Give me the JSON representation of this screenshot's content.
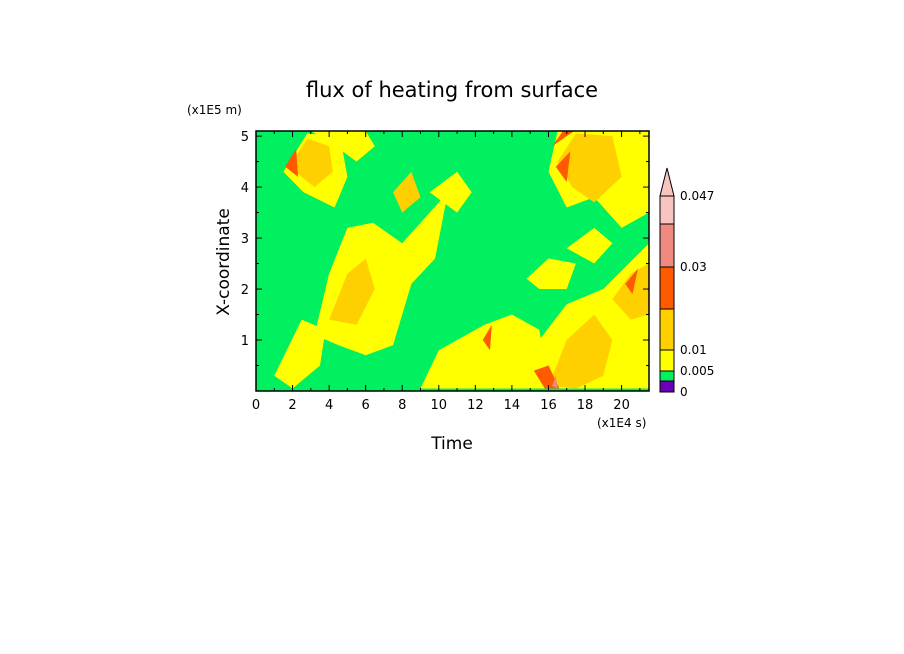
{
  "chart_data": {
    "type": "heatmap",
    "title": "flux of heating from surface",
    "xlabel": "Time",
    "ylabel": "X-coordinate",
    "x_unit": "(x1E4 s)",
    "y_unit": "(x1E5 m)",
    "xlim": [
      0,
      21.5
    ],
    "ylim": [
      0,
      5.1
    ],
    "x_ticks": [
      0,
      2,
      4,
      6,
      8,
      10,
      12,
      14,
      16,
      18,
      20
    ],
    "y_ticks": [
      1,
      2,
      3,
      4,
      5
    ],
    "colorbar": {
      "levels": [
        0,
        0.005,
        0.01,
        0.02,
        0.03,
        0.04,
        0.047
      ],
      "tick_labels": [
        "0",
        "0.005",
        "0.01",
        "0.03",
        "0.047"
      ],
      "colors": [
        "#6a00b8",
        "#00f060",
        "#ffff00",
        "#ffd000",
        "#ff5a00",
        "#f08a80",
        "#f8c4c0"
      ],
      "extend": "max"
    },
    "regions": [
      {
        "level": 0.005,
        "polygon": [
          [
            0,
            0
          ],
          [
            21.5,
            0
          ],
          [
            21.5,
            5.1
          ],
          [
            0,
            5.1
          ]
        ]
      },
      {
        "level": 0.01,
        "polygon": [
          [
            1.5,
            4.3
          ],
          [
            2.8,
            5.05
          ],
          [
            4.6,
            5.0
          ],
          [
            5.0,
            4.2
          ],
          [
            4.3,
            3.6
          ],
          [
            2.6,
            3.9
          ]
        ]
      },
      {
        "level": 0.01,
        "polygon": [
          [
            3.2,
            1.1
          ],
          [
            4.0,
            2.3
          ],
          [
            5.0,
            3.2
          ],
          [
            6.4,
            3.3
          ],
          [
            8.0,
            2.9
          ],
          [
            9.5,
            3.5
          ],
          [
            10.5,
            3.9
          ],
          [
            9.8,
            2.6
          ],
          [
            8.5,
            2.1
          ],
          [
            7.5,
            0.9
          ],
          [
            6.0,
            0.7
          ],
          [
            4.5,
            0.9
          ]
        ]
      },
      {
        "level": 0.01,
        "polygon": [
          [
            9.5,
            3.9
          ],
          [
            11.0,
            4.3
          ],
          [
            11.8,
            3.9
          ],
          [
            11.0,
            3.5
          ]
        ]
      },
      {
        "level": 0.01,
        "polygon": [
          [
            1.0,
            0.3
          ],
          [
            2.5,
            1.4
          ],
          [
            3.8,
            1.2
          ],
          [
            3.5,
            0.5
          ],
          [
            2.0,
            0.05
          ]
        ]
      },
      {
        "level": 0.01,
        "polygon": [
          [
            9.0,
            0.05
          ],
          [
            10.0,
            0.8
          ],
          [
            12.5,
            1.3
          ],
          [
            14.0,
            1.5
          ],
          [
            15.5,
            1.2
          ],
          [
            15.8,
            0.6
          ],
          [
            16.2,
            0.05
          ]
        ]
      },
      {
        "level": 0.01,
        "polygon": [
          [
            14.5,
            0.05
          ],
          [
            15.5,
            1.0
          ],
          [
            17.0,
            1.7
          ],
          [
            19.0,
            2.0
          ],
          [
            21.5,
            2.9
          ],
          [
            21.5,
            0.05
          ]
        ]
      },
      {
        "level": 0.01,
        "polygon": [
          [
            16.0,
            4.3
          ],
          [
            16.5,
            5.1
          ],
          [
            21.5,
            5.1
          ],
          [
            21.5,
            3.5
          ],
          [
            20.0,
            3.2
          ],
          [
            18.5,
            3.8
          ],
          [
            17.0,
            3.6
          ]
        ]
      },
      {
        "level": 0.01,
        "polygon": [
          [
            14.8,
            2.2
          ],
          [
            16.0,
            2.6
          ],
          [
            17.5,
            2.5
          ],
          [
            17.0,
            2.0
          ],
          [
            15.5,
            2.0
          ]
        ]
      },
      {
        "level": 0.01,
        "polygon": [
          [
            17.0,
            2.8
          ],
          [
            18.5,
            3.2
          ],
          [
            19.5,
            2.9
          ],
          [
            18.5,
            2.5
          ]
        ]
      },
      {
        "level": 0.01,
        "polygon": [
          [
            3.0,
            5.1
          ],
          [
            6.0,
            5.1
          ],
          [
            6.5,
            4.8
          ],
          [
            5.5,
            4.5
          ],
          [
            4.0,
            4.9
          ]
        ]
      },
      {
        "level": 0.02,
        "polygon": [
          [
            1.8,
            4.4
          ],
          [
            2.8,
            4.95
          ],
          [
            4.0,
            4.8
          ],
          [
            4.2,
            4.3
          ],
          [
            3.2,
            4.0
          ]
        ]
      },
      {
        "level": 0.02,
        "polygon": [
          [
            4.0,
            1.4
          ],
          [
            5.0,
            2.3
          ],
          [
            6.0,
            2.6
          ],
          [
            6.5,
            2.0
          ],
          [
            5.5,
            1.3
          ]
        ]
      },
      {
        "level": 0.02,
        "polygon": [
          [
            16.5,
            4.5
          ],
          [
            17.5,
            5.05
          ],
          [
            19.5,
            5.0
          ],
          [
            20.0,
            4.2
          ],
          [
            18.5,
            3.7
          ],
          [
            17.3,
            4.0
          ]
        ]
      },
      {
        "level": 0.02,
        "polygon": [
          [
            16.0,
            0.1
          ],
          [
            17.0,
            1.0
          ],
          [
            18.5,
            1.5
          ],
          [
            19.5,
            1.0
          ],
          [
            19.0,
            0.3
          ],
          [
            17.5,
            0.05
          ]
        ]
      },
      {
        "level": 0.02,
        "polygon": [
          [
            7.5,
            3.9
          ],
          [
            8.5,
            4.3
          ],
          [
            9.0,
            3.8
          ],
          [
            8.0,
            3.5
          ]
        ]
      },
      {
        "level": 0.02,
        "polygon": [
          [
            19.5,
            1.8
          ],
          [
            20.5,
            2.3
          ],
          [
            21.5,
            2.5
          ],
          [
            21.5,
            1.5
          ],
          [
            20.5,
            1.4
          ]
        ]
      },
      {
        "level": 0.03,
        "polygon": [
          [
            1.6,
            4.4
          ],
          [
            2.2,
            4.75
          ],
          [
            2.3,
            4.2
          ]
        ]
      },
      {
        "level": 0.03,
        "polygon": [
          [
            16.4,
            4.4
          ],
          [
            17.2,
            4.7
          ],
          [
            17.0,
            4.1
          ]
        ]
      },
      {
        "level": 0.03,
        "polygon": [
          [
            15.2,
            0.4
          ],
          [
            15.8,
            0.05
          ],
          [
            16.6,
            0.05
          ],
          [
            16.0,
            0.5
          ]
        ]
      },
      {
        "level": 0.03,
        "polygon": [
          [
            12.4,
            1.0
          ],
          [
            12.9,
            1.3
          ],
          [
            12.8,
            0.8
          ]
        ]
      },
      {
        "level": 0.03,
        "polygon": [
          [
            16.2,
            4.8
          ],
          [
            16.8,
            5.1
          ],
          [
            17.4,
            5.1
          ]
        ]
      },
      {
        "level": 0.03,
        "polygon": [
          [
            20.2,
            2.1
          ],
          [
            20.9,
            2.4
          ],
          [
            20.6,
            1.9
          ]
        ]
      },
      {
        "level": 0.04,
        "polygon": [
          [
            16.2,
            0.1
          ],
          [
            16.5,
            0.05
          ],
          [
            16.4,
            0.3
          ]
        ]
      }
    ]
  }
}
